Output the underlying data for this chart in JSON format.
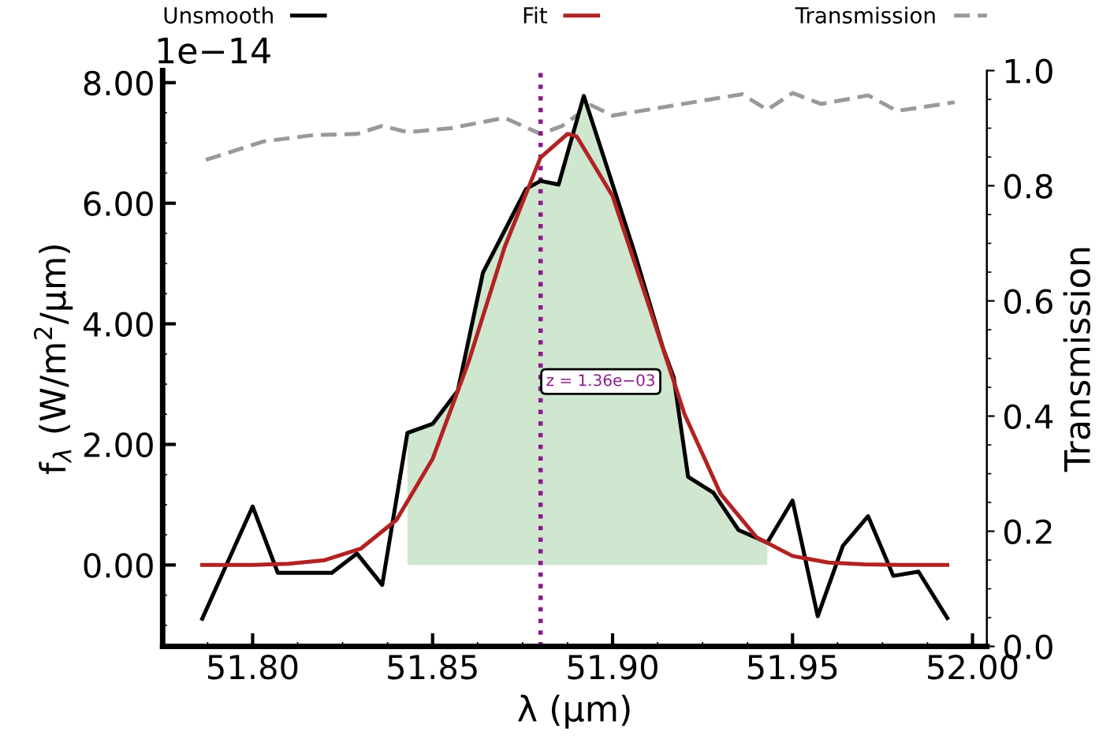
{
  "chart_data": {
    "type": "line",
    "xlabel": "λ (μm)",
    "ylabel": "f$_{λ}$ (W/m$^{2}$/μm)",
    "y2label": "Transmission",
    "annotations": [
      "1e−14",
      "z = 1.36e−03"
    ],
    "xlim": [
      51.775,
      52.004
    ],
    "xticks": [
      {
        "value": 51.8,
        "label": "51.80"
      },
      {
        "value": 51.85,
        "label": "51.85"
      },
      {
        "value": 51.9,
        "label": "51.90"
      },
      {
        "value": 51.95,
        "label": "51.95"
      },
      {
        "value": 52.0,
        "label": "52.00"
      }
    ],
    "ylim": [
      -1.35,
      8.2
    ],
    "yticks": [
      {
        "value": 0,
        "label": "0.00"
      },
      {
        "value": 2,
        "label": "2.00"
      },
      {
        "value": 4,
        "label": "4.00"
      },
      {
        "value": 6,
        "label": "6.00"
      },
      {
        "value": 8,
        "label": "8.00"
      }
    ],
    "y2lim": [
      0,
      1.0
    ],
    "y2ticks": [
      {
        "value": 0,
        "label": "0.0"
      },
      {
        "value": 0.2,
        "label": "0.2"
      },
      {
        "value": 0.4,
        "label": "0.4"
      },
      {
        "value": 0.6,
        "label": "0.6"
      },
      {
        "value": 0.8,
        "label": "0.8"
      },
      {
        "value": 1.0,
        "label": "1.0"
      }
    ],
    "grid": false,
    "legend": "top",
    "marker": "none",
    "ref_lines": [
      {
        "axis": "x",
        "value": 51.88,
        "color": "#8b1a8b",
        "line_style": "dotted"
      }
    ],
    "series": [
      {
        "type": "area",
        "color": "#cfe6cf",
        "x": [
          51.843,
          51.85,
          51.857,
          51.864,
          51.876,
          51.88,
          51.885,
          51.892,
          51.899,
          51.906,
          51.914,
          51.917,
          51.921,
          51.928,
          51.935,
          51.943
        ],
        "values": [
          2.19,
          2.34,
          2.89,
          4.85,
          6.24,
          6.37,
          6.31,
          7.78,
          6.5,
          5.2,
          3.6,
          3.11,
          1.46,
          1.2,
          0.58,
          0.37
        ]
      },
      {
        "name": "Unsmooth",
        "color": "#000000",
        "line_style": "solid",
        "x": [
          51.786,
          51.8,
          51.807,
          51.822,
          51.829,
          51.836,
          51.843,
          51.85,
          51.857,
          51.864,
          51.876,
          51.88,
          51.885,
          51.892,
          51.899,
          51.906,
          51.914,
          51.917,
          51.921,
          51.928,
          51.935,
          51.943,
          51.95,
          51.957,
          51.964,
          51.971,
          51.978,
          51.985,
          51.993
        ],
        "values": [
          -0.89,
          0.97,
          -0.13,
          -0.13,
          0.19,
          -0.33,
          2.19,
          2.34,
          2.89,
          4.85,
          6.24,
          6.37,
          6.31,
          7.78,
          6.5,
          5.2,
          3.6,
          3.11,
          1.46,
          1.2,
          0.58,
          0.37,
          1.07,
          -0.85,
          0.32,
          0.81,
          -0.18,
          -0.11,
          -0.88
        ]
      },
      {
        "name": "Fit",
        "color": "#b22222",
        "line_style": "solid",
        "x": [
          51.786,
          51.8,
          51.81,
          51.82,
          51.83,
          51.84,
          51.85,
          51.86,
          51.87,
          51.88,
          51.8875,
          51.89,
          51.9,
          51.91,
          51.92,
          51.93,
          51.94,
          51.95,
          51.96,
          51.97,
          51.98,
          51.993
        ],
        "values": [
          0,
          0,
          0.02,
          0.08,
          0.27,
          0.75,
          1.76,
          3.37,
          5.27,
          6.76,
          7.15,
          7.11,
          6.12,
          4.32,
          2.5,
          1.18,
          0.46,
          0.15,
          0.04,
          0.01,
          0,
          0
        ]
      },
      {
        "name": "Transmission",
        "axis": "y2",
        "color": "#999999",
        "line_style": "dashed",
        "x": [
          51.787,
          51.803,
          51.817,
          51.829,
          51.836,
          51.843,
          51.855,
          51.87,
          51.88,
          51.886,
          51.894,
          51.9,
          51.936,
          51.943,
          51.95,
          51.958,
          51.971,
          51.979,
          51.995
        ],
        "values": [
          0.845,
          0.877,
          0.888,
          0.89,
          0.904,
          0.893,
          0.9,
          0.918,
          0.89,
          0.904,
          0.94,
          0.922,
          0.959,
          0.932,
          0.961,
          0.942,
          0.957,
          0.93,
          0.945
        ]
      }
    ]
  }
}
